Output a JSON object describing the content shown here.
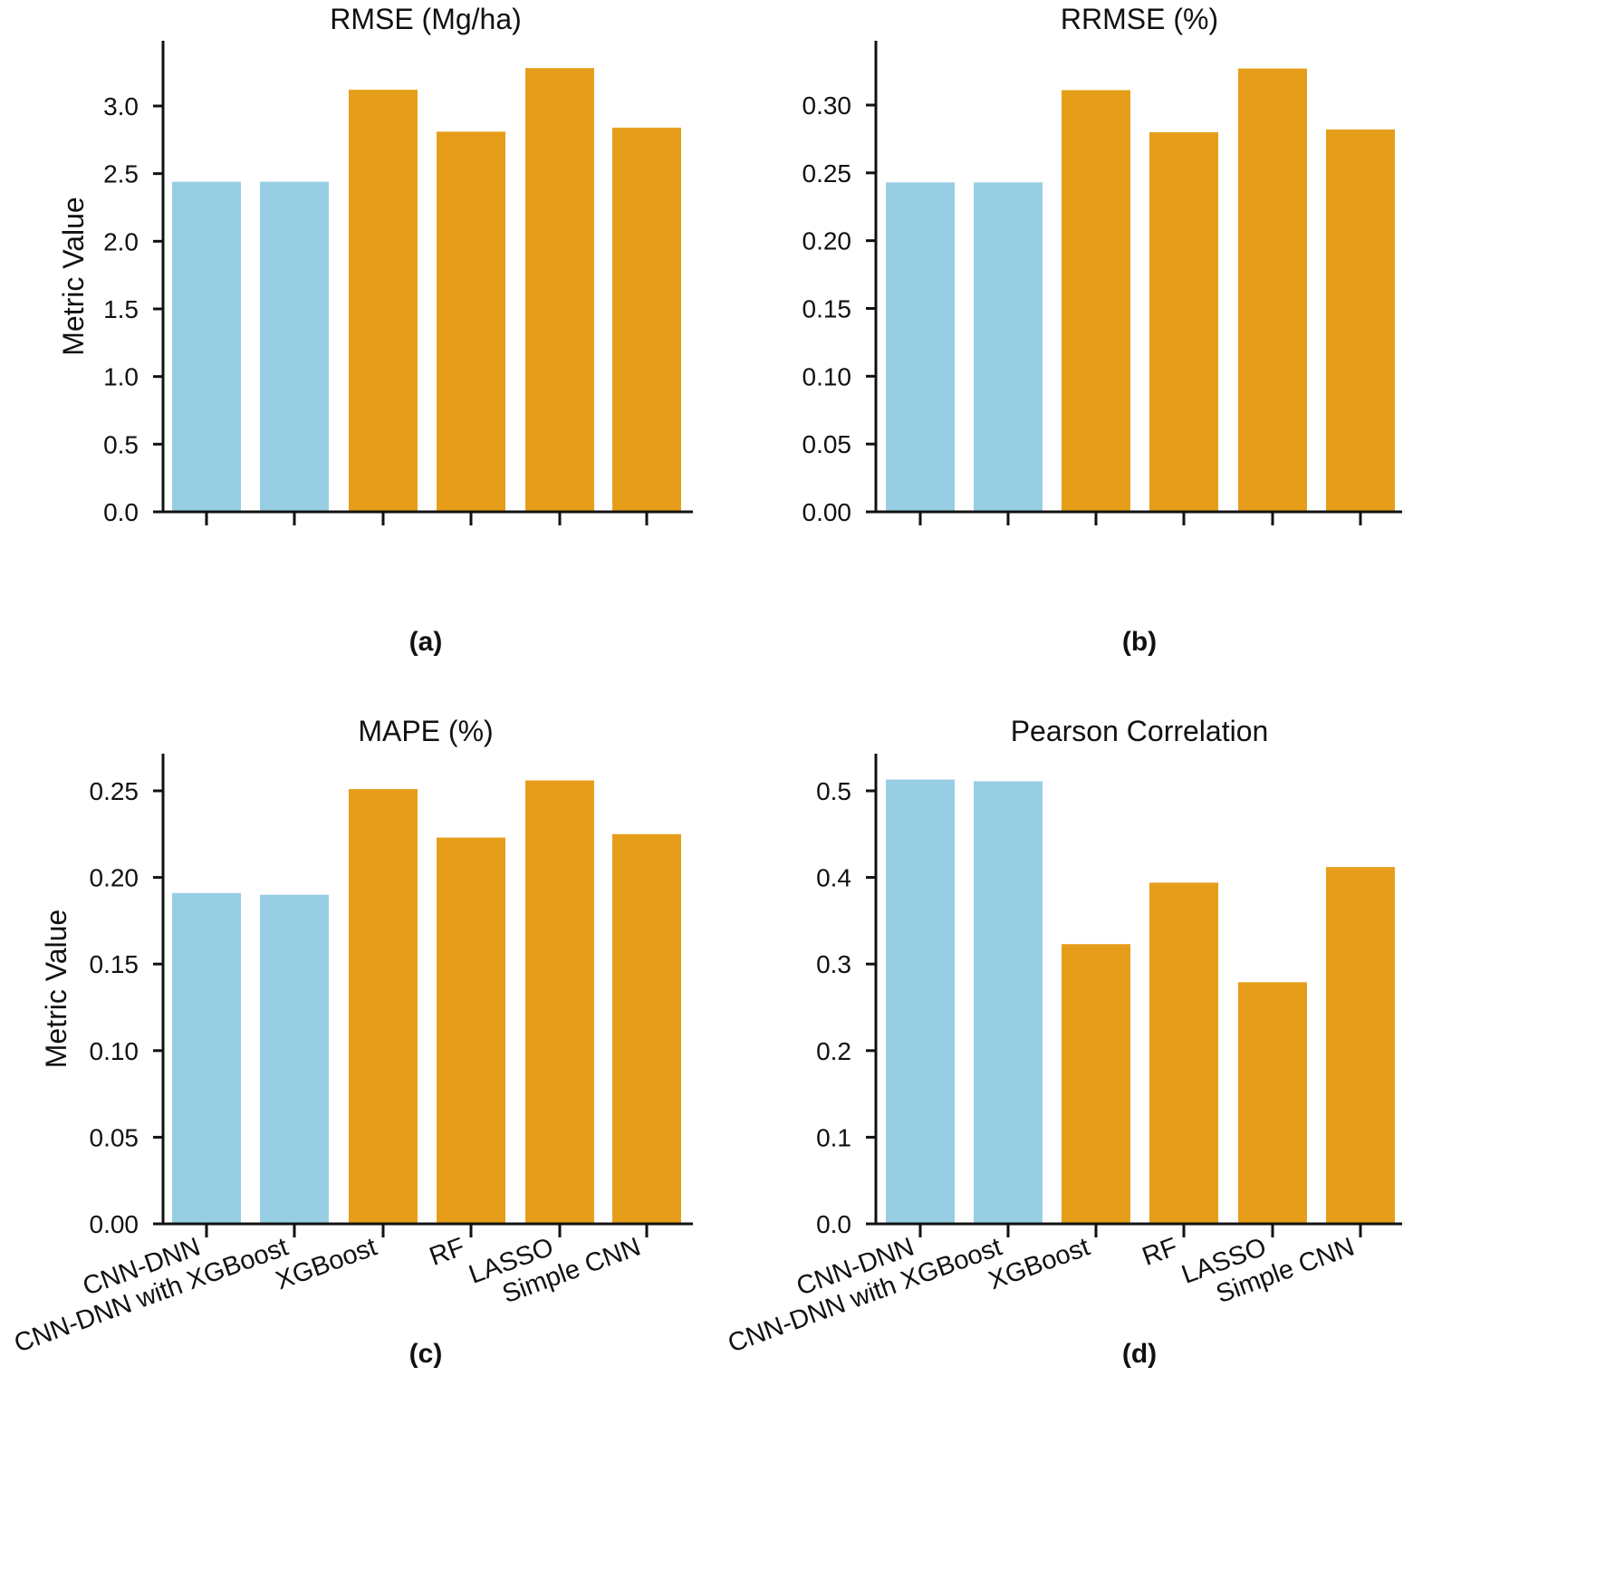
{
  "colors": {
    "highlight": "#98CEE4",
    "other": "#E69E1A",
    "axis": "#111111"
  },
  "y_axis_label": "Metric Value",
  "chart_data": [
    {
      "type": "bar",
      "panel": "(a)",
      "title": "RMSE (Mg/ha)",
      "categories": [
        "CNN-DNN",
        "CNN-DNN with XGBoost",
        "XGBoost",
        "RF",
        "LASSO",
        "Simple CNN"
      ],
      "values": [
        2.44,
        2.44,
        3.12,
        2.81,
        3.28,
        2.84
      ],
      "bar_colors": [
        "highlight",
        "highlight",
        "other",
        "other",
        "other",
        "other"
      ],
      "yticks": [
        "0.0",
        "0.5",
        "1.0",
        "1.5",
        "2.0",
        "2.5",
        "3.0"
      ],
      "ylim": [
        0,
        3.5
      ],
      "ylabel": "Metric Value",
      "show_xticklabels": false
    },
    {
      "type": "bar",
      "panel": "(b)",
      "title": "RRMSE (%)",
      "categories": [
        "CNN-DNN",
        "CNN-DNN with XGBoost",
        "XGBoost",
        "RF",
        "LASSO",
        "Simple CNN"
      ],
      "values": [
        0.243,
        0.243,
        0.311,
        0.28,
        0.327,
        0.282
      ],
      "bar_colors": [
        "highlight",
        "highlight",
        "other",
        "other",
        "other",
        "other"
      ],
      "yticks": [
        "0.00",
        "0.05",
        "0.10",
        "0.15",
        "0.20",
        "0.25",
        "0.30"
      ],
      "ylim": [
        0,
        0.35
      ],
      "ylabel": "",
      "show_xticklabels": false
    },
    {
      "type": "bar",
      "panel": "(c)",
      "title": "MAPE (%)",
      "categories": [
        "CNN-DNN",
        "CNN-DNN with XGBoost",
        "XGBoost",
        "RF",
        "LASSO",
        "Simple CNN"
      ],
      "values": [
        0.191,
        0.19,
        0.251,
        0.223,
        0.256,
        0.225
      ],
      "bar_colors": [
        "highlight",
        "highlight",
        "other",
        "other",
        "other",
        "other"
      ],
      "yticks": [
        "0.00",
        "0.05",
        "0.10",
        "0.15",
        "0.20",
        "0.25"
      ],
      "ylim": [
        0,
        0.27
      ],
      "ylabel": "Metric Value",
      "show_xticklabels": true
    },
    {
      "type": "bar",
      "panel": "(d)",
      "title": "Pearson Correlation",
      "categories": [
        "CNN-DNN",
        "CNN-DNN with XGBoost",
        "XGBoost",
        "RF",
        "LASSO",
        "Simple CNN"
      ],
      "values": [
        0.513,
        0.511,
        0.323,
        0.394,
        0.279,
        0.412
      ],
      "bar_colors": [
        "highlight",
        "highlight",
        "other",
        "other",
        "other",
        "other"
      ],
      "yticks": [
        "0.0",
        "0.1",
        "0.2",
        "0.3",
        "0.4",
        "0.5"
      ],
      "ylim": [
        0,
        0.54
      ],
      "ylabel": "",
      "show_xticklabels": true
    }
  ]
}
